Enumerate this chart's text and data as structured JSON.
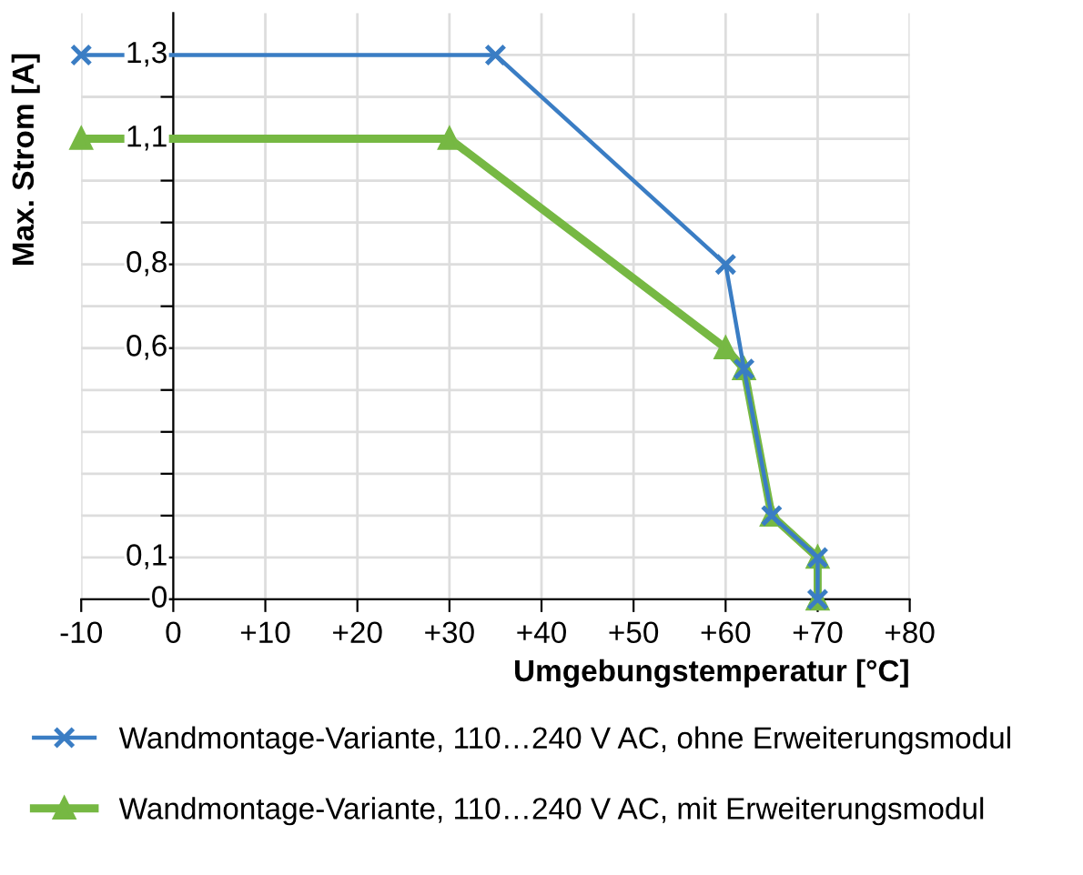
{
  "chart_data": {
    "type": "line",
    "xlabel": "Umgebungstemperatur [°C]",
    "ylabel": "Max. Strom [A]",
    "xlim": [
      -10,
      80
    ],
    "ylim": [
      0,
      1.4
    ],
    "xticks": [
      {
        "value": -10,
        "label": "-10"
      },
      0,
      {
        "value": 10,
        "label": "+10"
      },
      {
        "value": 20,
        "label": "+20"
      },
      {
        "value": 30,
        "label": "+30"
      },
      {
        "value": 40,
        "label": "+40"
      },
      {
        "value": 50,
        "label": "+50"
      },
      {
        "value": 60,
        "label": "+60"
      },
      {
        "value": 70,
        "label": "+70"
      },
      {
        "value": 80,
        "label": "+80"
      }
    ],
    "yticks": [
      0,
      {
        "value": 0.1,
        "label": "0,1"
      },
      {
        "value": 0.2,
        "label": null
      },
      {
        "value": 0.3,
        "label": null
      },
      {
        "value": 0.4,
        "label": null
      },
      {
        "value": 0.5,
        "label": null
      },
      {
        "value": 0.6,
        "label": "0,6"
      },
      {
        "value": 0.7,
        "label": null
      },
      {
        "value": 0.8,
        "label": "0,8"
      },
      {
        "value": 0.9,
        "label": null
      },
      {
        "value": 1.0,
        "label": null
      },
      {
        "value": 1.1,
        "label": "1,1"
      },
      {
        "value": 1.2,
        "label": null
      },
      {
        "value": 1.3,
        "label": "1,3"
      }
    ],
    "grid": true,
    "legend": "bottom",
    "series": [
      {
        "name": "Wandmontage-Variante, 110…240 V AC, ohne Erweiterungsmodul",
        "color": "#3a7dc4",
        "marker": "cross",
        "x": [
          -10,
          35,
          60,
          62,
          65,
          70,
          70
        ],
        "values": [
          1.3,
          1.3,
          0.8,
          0.55,
          0.2,
          0.1,
          0
        ]
      },
      {
        "name": "Wandmontage-Variante, 110…240 V AC, mit Erweiterungsmodul",
        "color": "#76b843",
        "marker": "triangle",
        "x": [
          -10,
          30,
          60,
          62,
          65,
          70,
          70
        ],
        "values": [
          1.1,
          1.1,
          0.6,
          0.55,
          0.2,
          0.1,
          0
        ]
      }
    ]
  }
}
